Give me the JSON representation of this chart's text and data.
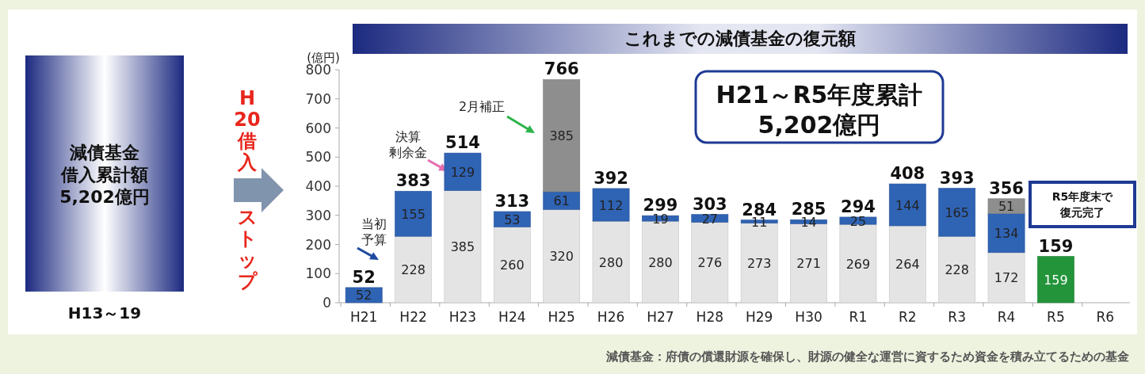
{
  "chart_data": {
    "type": "bar",
    "title": "これまでの減債基金の復元額",
    "ylabel": "(億円)",
    "categories": [
      "H21",
      "H22",
      "H23",
      "H24",
      "H25",
      "H26",
      "H27",
      "H28",
      "H29",
      "H30",
      "R1",
      "R2",
      "R3",
      "R4",
      "R5",
      "R6"
    ],
    "stacked": true,
    "data_labels": true,
    "grid": false,
    "ylim": [
      0,
      800
    ],
    "yticks": [
      0,
      100,
      200,
      300,
      400,
      500,
      600,
      700,
      800
    ],
    "series": [
      {
        "color": "#e4e4e4",
        "values": [
          null,
          228,
          385,
          260,
          320,
          280,
          280,
          276,
          273,
          271,
          269,
          264,
          228,
          172,
          null,
          null
        ]
      },
      {
        "color": "#2f63b4",
        "values": [
          52,
          155,
          129,
          53,
          61,
          112,
          19,
          27,
          11,
          14,
          25,
          144,
          165,
          134,
          null,
          null
        ]
      },
      {
        "color": "#8e8e8e",
        "values": [
          null,
          null,
          null,
          null,
          385,
          null,
          null,
          null,
          null,
          null,
          null,
          null,
          null,
          51,
          null,
          null
        ]
      },
      {
        "color": "#23943a",
        "values": [
          null,
          null,
          null,
          null,
          null,
          null,
          null,
          null,
          null,
          null,
          null,
          null,
          null,
          null,
          159,
          null
        ]
      }
    ],
    "totals": [
      "52",
      "383",
      "514",
      "313",
      "766",
      "392",
      "299",
      "303",
      "284",
      "285",
      "294",
      "408",
      "393",
      "356",
      "159",
      null
    ],
    "annotations": [
      "減債基金借入累計額5,202億円",
      "H13～19",
      "H20借入ストップ",
      "H21～R5年度累計\n5,202億円",
      "R5年度末で復元完了",
      "当初予算",
      "決算剰余金",
      "2月補正",
      "減債基金：府債の償還財源を確保し、財源の健全な運営に資するため資金を積み立てるための基金"
    ]
  }
}
